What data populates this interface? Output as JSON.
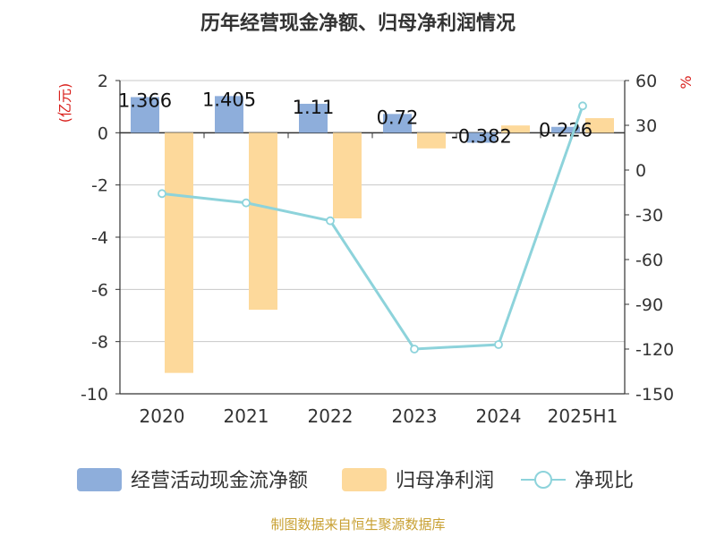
{
  "chart_data": {
    "type": "bar",
    "title": "历年经营现金净额、归母净利润情况",
    "categories": [
      "2020",
      "2021",
      "2022",
      "2023",
      "2024",
      "2025H1"
    ],
    "y_left": {
      "unit_label": "(亿元)",
      "ylim": [
        -10,
        2
      ],
      "ticks": [
        "2",
        "0",
        "-2",
        "-4",
        "-6",
        "-8",
        "-10"
      ]
    },
    "y_right": {
      "unit_label": "%",
      "ylim": [
        -150,
        60
      ],
      "ticks": [
        "60",
        "30",
        "0",
        "-30",
        "-60",
        "-90",
        "-120",
        "-150"
      ]
    },
    "series": [
      {
        "name": "经营活动现金流净额",
        "type": "bar",
        "axis": "left",
        "color": "#8eaedb",
        "values": [
          1.366,
          1.405,
          1.11,
          0.72,
          -0.382,
          0.226
        ],
        "labels": [
          "1.366",
          "1.405",
          "1.11",
          "0.72",
          "-0.382",
          "0.226"
        ]
      },
      {
        "name": "归母净利润",
        "type": "bar",
        "axis": "left",
        "color": "#fdd99b",
        "values": [
          -9.2,
          -6.78,
          -3.28,
          -0.6,
          0.28,
          0.56
        ]
      },
      {
        "name": "净现比",
        "type": "line",
        "axis": "right",
        "color": "#8dd3db",
        "values": [
          -15.8,
          -22.0,
          -34.0,
          -120.0,
          -117.0,
          43.0
        ]
      }
    ],
    "grid": true,
    "legend_position": "bottom"
  },
  "source_note": "制图数据来自恒生聚源数据库"
}
